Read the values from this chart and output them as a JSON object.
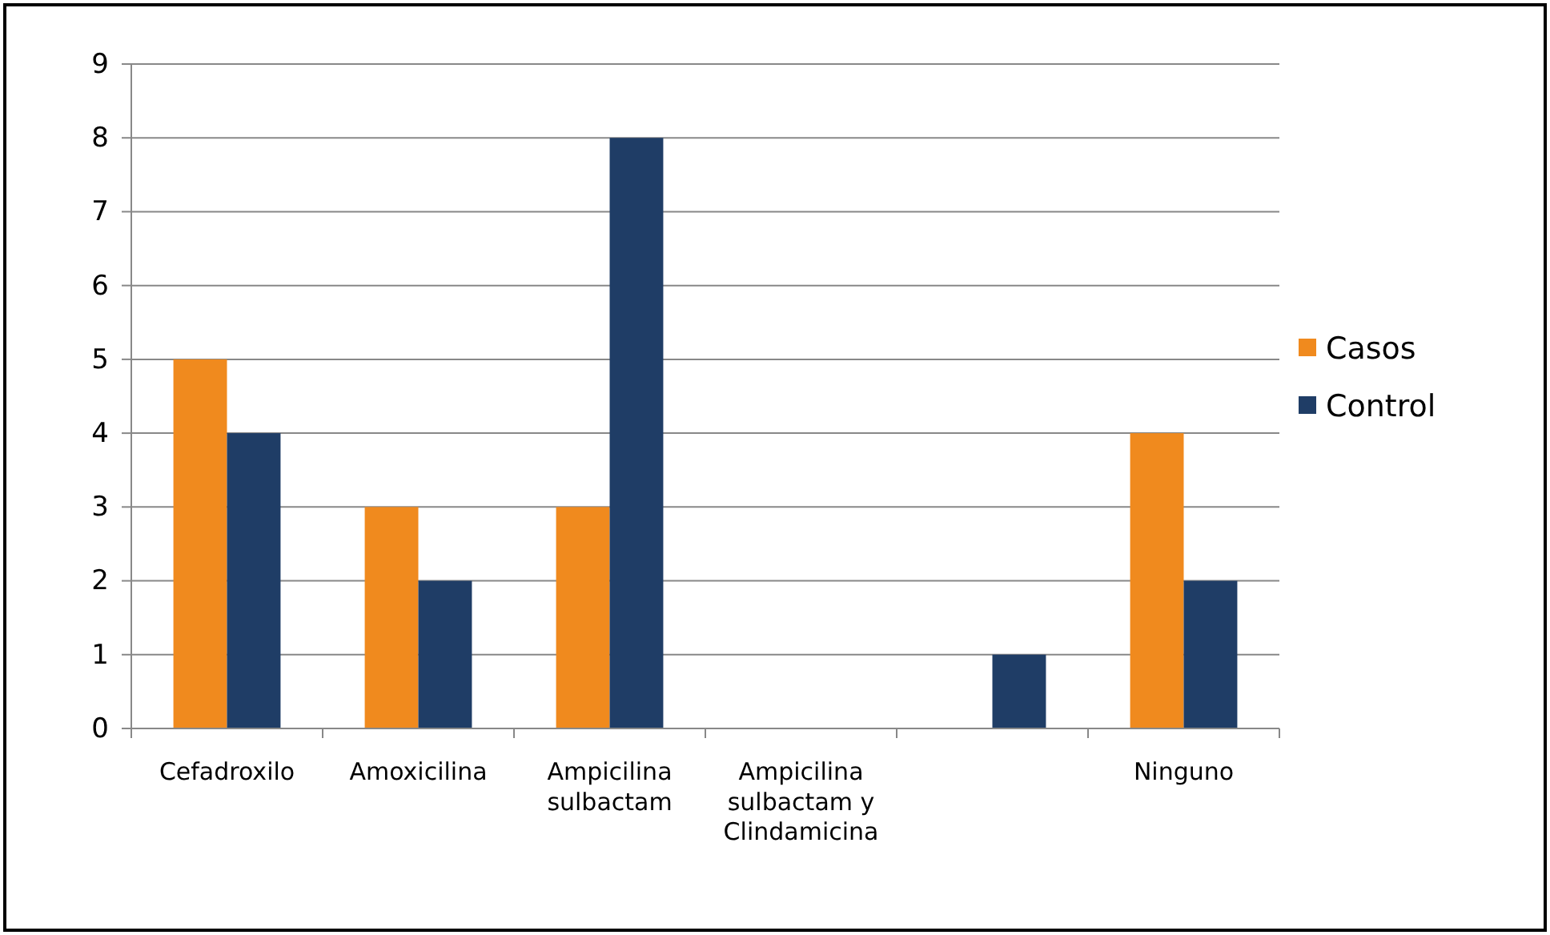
{
  "chart_data": {
    "type": "bar",
    "categories": [
      "Cefadroxilo",
      "Amoxicilina",
      "Ampicilina sulbactam",
      "Ampicilina sulbactam y Clindamicina",
      null,
      "Ninguno"
    ],
    "series": [
      {
        "name": "Casos",
        "color": "#f08a1e",
        "values": [
          5,
          3,
          3,
          0,
          0,
          4
        ]
      },
      {
        "name": "Control",
        "color": "#1f3d66",
        "values": [
          4,
          2,
          8,
          0,
          1,
          2
        ]
      }
    ],
    "ylim": [
      0,
      9
    ],
    "yticks": [
      0,
      1,
      2,
      3,
      4,
      5,
      6,
      7,
      8,
      9
    ],
    "grid": "y",
    "legend": "right"
  }
}
